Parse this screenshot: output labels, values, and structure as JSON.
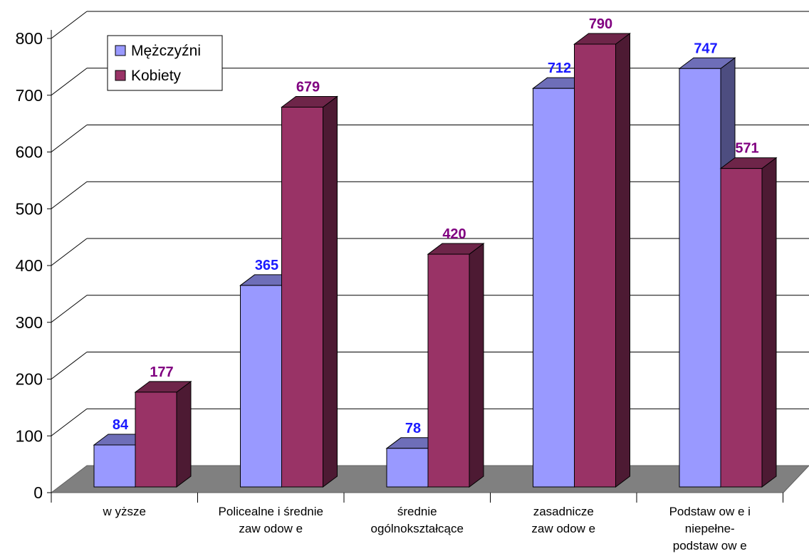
{
  "chart_data": {
    "type": "bar",
    "categories": [
      "w yższe",
      "Policealne i średnie zaw odow e",
      "średnie ogólnokształcące",
      "zasadnicze zaw odow e",
      "Podstaw ow e i niepełne- podstaw ow e"
    ],
    "category_lines": [
      [
        "w yższe"
      ],
      [
        "Policealne i średnie",
        "zaw odow e"
      ],
      [
        "średnie",
        "ogólnokształcące"
      ],
      [
        "zasadnicze",
        "zaw odow e"
      ],
      [
        "Podstaw ow e i",
        "niepełne-",
        "podstaw ow e"
      ]
    ],
    "series": [
      {
        "name": "Mężczyźni",
        "values": [
          84,
          365,
          78,
          712,
          747
        ],
        "color": "#9999ff",
        "label_color": "#1a1aff"
      },
      {
        "name": "Kobiety",
        "values": [
          177,
          679,
          420,
          790,
          571
        ],
        "color": "#993366",
        "label_color": "#800080"
      }
    ],
    "yticks": [
      0,
      100,
      200,
      300,
      400,
      500,
      600,
      700,
      800
    ],
    "ylim": [
      0,
      800
    ],
    "grid": true,
    "legend_position": "top-left",
    "three_d": true
  }
}
